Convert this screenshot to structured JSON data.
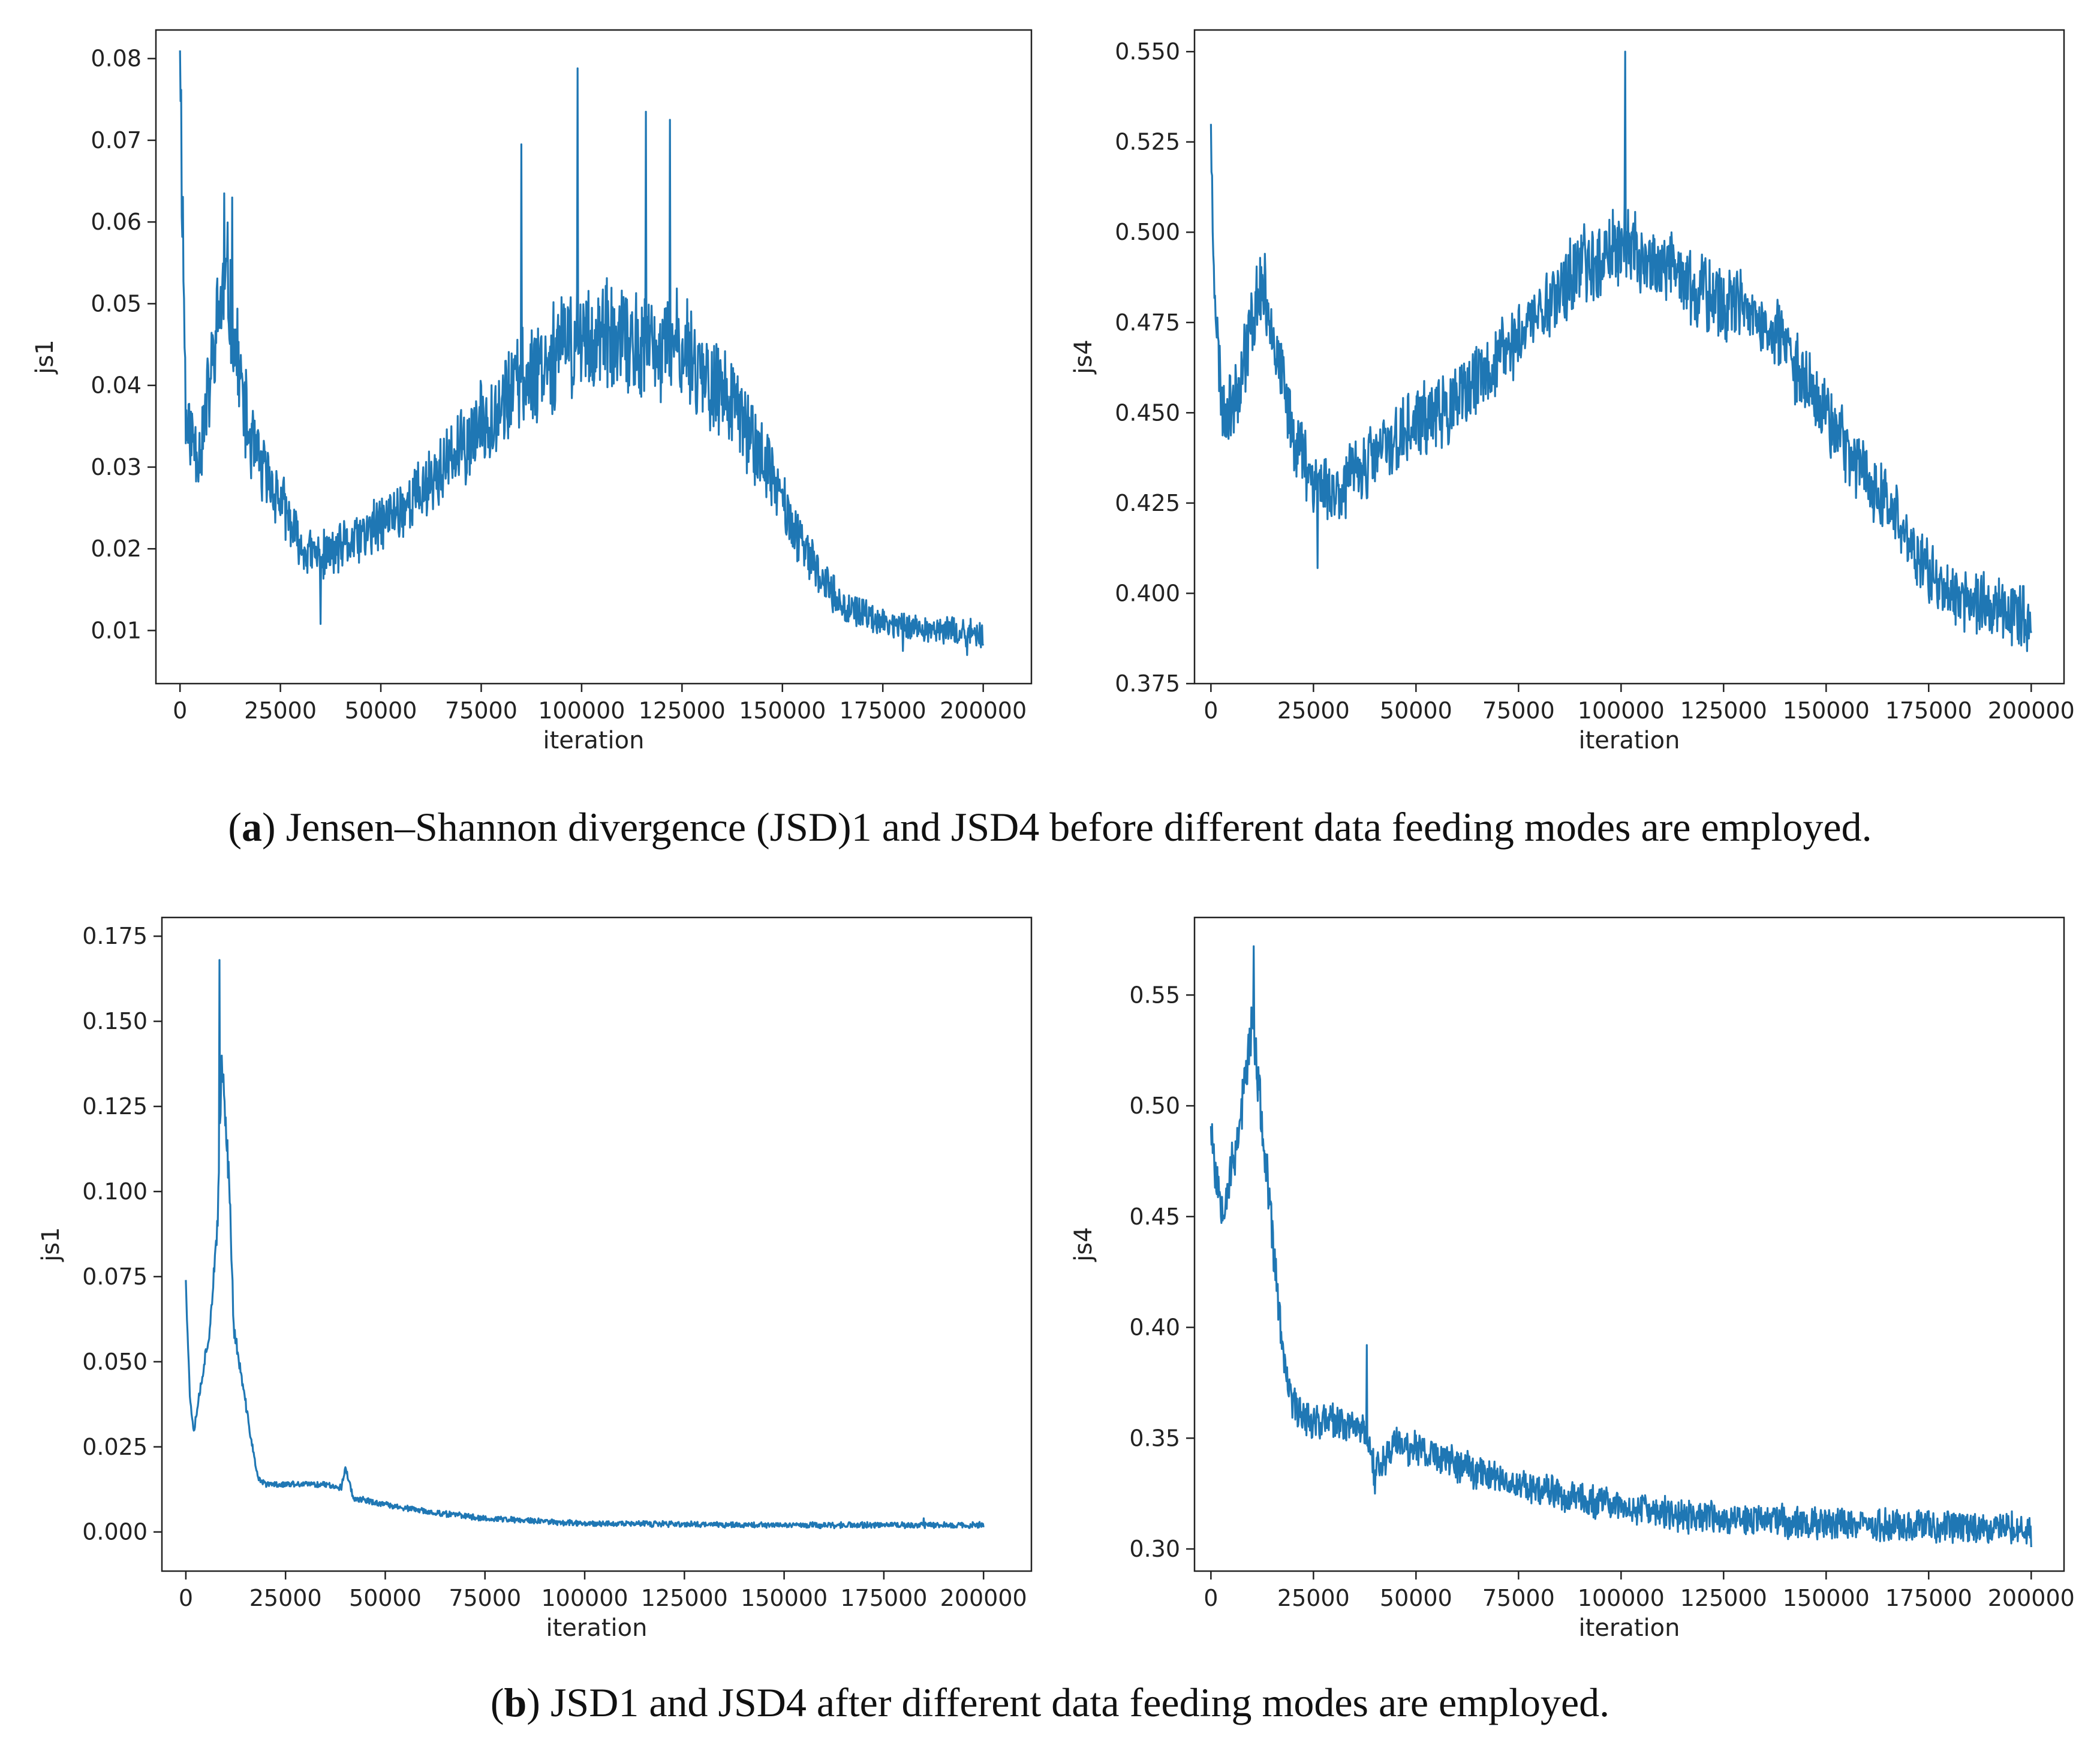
{
  "figure": {
    "caption_a": {
      "letter": "a",
      "open": "(",
      "close": ")",
      "text": " Jensen–Shannon divergence (JSD)1 and JSD4 before different data feeding modes are employed."
    },
    "caption_b": {
      "letter": "b",
      "open": "(",
      "close": ")",
      "text": " JSD1 and JSD4 after different data feeding modes are employed."
    }
  },
  "colors": {
    "line": "#1f77b4",
    "axis": "#222222"
  },
  "chart_data": [
    {
      "type": "line",
      "name": "a-js1",
      "title": "",
      "xlabel": "iteration",
      "ylabel": "js1",
      "xlim": [
        -6000,
        212000
      ],
      "ylim": [
        0.0035,
        0.0835
      ],
      "xticks": [
        0,
        25000,
        50000,
        75000,
        100000,
        125000,
        150000,
        175000,
        200000
      ],
      "yticks": [
        0.01,
        0.02,
        0.03,
        0.04,
        0.05,
        0.06,
        0.07,
        0.08
      ],
      "ytick_labels": [
        "0.01",
        "0.02",
        "0.03",
        "0.04",
        "0.05",
        "0.06",
        "0.07",
        "0.08"
      ],
      "series": [
        {
          "name": "js1",
          "color": "#1f77b4",
          "noise": 0.0075,
          "points": [
            [
              0,
              0.081
            ],
            [
              1500,
              0.035
            ],
            [
              5000,
              0.032
            ],
            [
              8000,
              0.042
            ],
            [
              10000,
              0.05
            ],
            [
              12000,
              0.052
            ],
            [
              14000,
              0.044
            ],
            [
              17000,
              0.034
            ],
            [
              20000,
              0.03
            ],
            [
              25000,
              0.026
            ],
            [
              30000,
              0.02
            ],
            [
              35000,
              0.019
            ],
            [
              40000,
              0.02
            ],
            [
              50000,
              0.023
            ],
            [
              60000,
              0.027
            ],
            [
              70000,
              0.032
            ],
            [
              80000,
              0.038
            ],
            [
              90000,
              0.043
            ],
            [
              100000,
              0.046
            ],
            [
              110000,
              0.045
            ],
            [
              120000,
              0.044
            ],
            [
              125000,
              0.045
            ],
            [
              130000,
              0.042
            ],
            [
              140000,
              0.036
            ],
            [
              148000,
              0.028
            ],
            [
              155000,
              0.02
            ],
            [
              165000,
              0.013
            ],
            [
              175000,
              0.011
            ],
            [
              190000,
              0.01
            ],
            [
              200000,
              0.0095
            ]
          ],
          "spikes": [
            [
              0,
              0.081
            ],
            [
              11000,
              0.0635
            ],
            [
              13000,
              0.063
            ],
            [
              35000,
              0.0108
            ],
            [
              85000,
              0.0695
            ],
            [
              99000,
              0.0788
            ],
            [
              116000,
              0.0735
            ],
            [
              122000,
              0.0725
            ],
            [
              180000,
              0.0075
            ],
            [
              196000,
              0.007
            ]
          ]
        }
      ]
    },
    {
      "type": "line",
      "name": "a-js4",
      "title": "",
      "xlabel": "iteration",
      "ylabel": "js4",
      "xlim": [
        -4000,
        208000
      ],
      "ylim": [
        0.375,
        0.556
      ],
      "xticks": [
        0,
        25000,
        50000,
        75000,
        100000,
        125000,
        150000,
        175000,
        200000
      ],
      "yticks": [
        0.375,
        0.4,
        0.425,
        0.45,
        0.475,
        0.5,
        0.525,
        0.55
      ],
      "ytick_labels": [
        "0.375",
        "0.400",
        "0.425",
        "0.450",
        "0.475",
        "0.500",
        "0.525",
        "0.550"
      ],
      "series": [
        {
          "name": "js4",
          "color": "#1f77b4",
          "noise": 0.012,
          "points": [
            [
              0,
              0.52
            ],
            [
              1500,
              0.47
            ],
            [
              3000,
              0.45
            ],
            [
              6000,
              0.455
            ],
            [
              9000,
              0.47
            ],
            [
              12000,
              0.485
            ],
            [
              14000,
              0.48
            ],
            [
              17000,
              0.46
            ],
            [
              20000,
              0.445
            ],
            [
              25000,
              0.432
            ],
            [
              30000,
              0.428
            ],
            [
              40000,
              0.438
            ],
            [
              50000,
              0.447
            ],
            [
              60000,
              0.452
            ],
            [
              70000,
              0.465
            ],
            [
              80000,
              0.478
            ],
            [
              90000,
              0.49
            ],
            [
              100000,
              0.497
            ],
            [
              110000,
              0.49
            ],
            [
              120000,
              0.483
            ],
            [
              130000,
              0.478
            ],
            [
              140000,
              0.468
            ],
            [
              148000,
              0.455
            ],
            [
              155000,
              0.44
            ],
            [
              165000,
              0.425
            ],
            [
              175000,
              0.405
            ],
            [
              185000,
              0.398
            ],
            [
              195000,
              0.395
            ],
            [
              200000,
              0.393
            ]
          ],
          "spikes": [
            [
              0,
              0.53
            ],
            [
              101000,
              0.55
            ],
            [
              26000,
              0.407
            ],
            [
              199000,
              0.384
            ]
          ]
        }
      ]
    },
    {
      "type": "line",
      "name": "b-js1",
      "title": "",
      "xlabel": "iteration",
      "ylabel": "js1",
      "xlim": [
        -6000,
        212000
      ],
      "ylim": [
        -0.0115,
        0.1805
      ],
      "xticks": [
        0,
        25000,
        50000,
        75000,
        100000,
        125000,
        150000,
        175000,
        200000
      ],
      "yticks": [
        0,
        0.025,
        0.05,
        0.075,
        0.1,
        0.125,
        0.15,
        0.175
      ],
      "ytick_labels": [
        "0.000",
        "0.025",
        "0.050",
        "0.075",
        "0.100",
        "0.125",
        "0.150",
        "0.175"
      ],
      "series": [
        {
          "name": "js1",
          "color": "#1f77b4",
          "noise": 0.004,
          "points": [
            [
              0,
              0.074
            ],
            [
              1000,
              0.04
            ],
            [
              2000,
              0.03
            ],
            [
              4000,
              0.045
            ],
            [
              6000,
              0.06
            ],
            [
              8000,
              0.09
            ],
            [
              9000,
              0.14
            ],
            [
              10000,
              0.12
            ],
            [
              11000,
              0.1
            ],
            [
              12000,
              0.06
            ],
            [
              14000,
              0.045
            ],
            [
              16000,
              0.03
            ],
            [
              18000,
              0.016
            ],
            [
              20000,
              0.014
            ],
            [
              25000,
              0.014
            ],
            [
              35000,
              0.014
            ],
            [
              39000,
              0.013
            ],
            [
              40000,
              0.019
            ],
            [
              42000,
              0.01
            ],
            [
              50000,
              0.008
            ],
            [
              60000,
              0.006
            ],
            [
              75000,
              0.004
            ],
            [
              100000,
              0.0025
            ],
            [
              150000,
              0.002
            ],
            [
              200000,
              0.002
            ]
          ],
          "spikes": [
            [
              0,
              0.074
            ],
            [
              8500,
              0.168
            ],
            [
              40000,
              0.019
            ],
            [
              185000,
              0.004
            ]
          ]
        }
      ]
    },
    {
      "type": "line",
      "name": "b-js4",
      "title": "",
      "xlabel": "iteration",
      "ylabel": "js4",
      "xlim": [
        -4000,
        208000
      ],
      "ylim": [
        0.29,
        0.585
      ],
      "xticks": [
        0,
        25000,
        50000,
        75000,
        100000,
        125000,
        150000,
        175000,
        200000
      ],
      "yticks": [
        0.3,
        0.35,
        0.4,
        0.45,
        0.5,
        0.55
      ],
      "ytick_labels": [
        "0.30",
        "0.35",
        "0.40",
        "0.45",
        "0.50",
        "0.55"
      ],
      "series": [
        {
          "name": "js4",
          "color": "#1f77b4",
          "noise": 0.012,
          "points": [
            [
              0,
              0.495
            ],
            [
              1000,
              0.47
            ],
            [
              3000,
              0.455
            ],
            [
              6000,
              0.48
            ],
            [
              9000,
              0.52
            ],
            [
              10000,
              0.54
            ],
            [
              12000,
              0.5
            ],
            [
              14000,
              0.46
            ],
            [
              16000,
              0.42
            ],
            [
              18000,
              0.38
            ],
            [
              20000,
              0.365
            ],
            [
              25000,
              0.358
            ],
            [
              35000,
              0.356
            ],
            [
              38000,
              0.354
            ],
            [
              40000,
              0.335
            ],
            [
              45000,
              0.348
            ],
            [
              55000,
              0.342
            ],
            [
              65000,
              0.335
            ],
            [
              75000,
              0.33
            ],
            [
              90000,
              0.322
            ],
            [
              110000,
              0.316
            ],
            [
              130000,
              0.313
            ],
            [
              160000,
              0.311
            ],
            [
              200000,
              0.309
            ]
          ],
          "spikes": [
            [
              10500,
              0.572
            ],
            [
              38000,
              0.392
            ],
            [
              40000,
              0.325
            ]
          ]
        }
      ]
    }
  ]
}
